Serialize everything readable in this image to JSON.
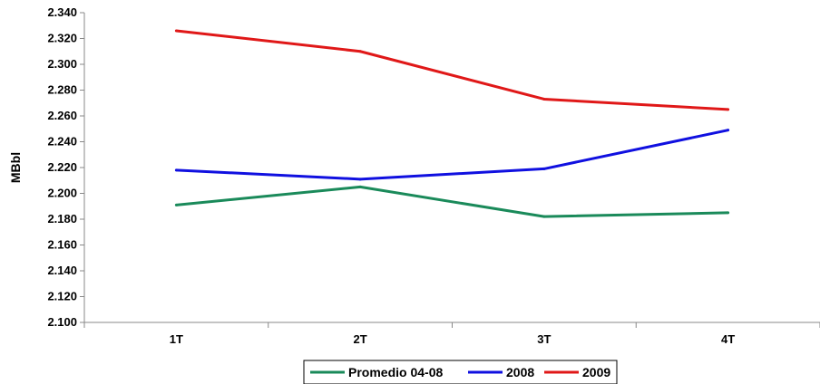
{
  "chart_data": {
    "type": "line",
    "categories": [
      "1T",
      "2T",
      "3T",
      "4T"
    ],
    "ylabel": "MBbl",
    "ylim": [
      2.1,
      2.34
    ],
    "y_ticks": [
      "2.100",
      "2.120",
      "2.140",
      "2.160",
      "2.180",
      "2.200",
      "2.220",
      "2.240",
      "2.260",
      "2.280",
      "2.300",
      "2.320",
      "2.340"
    ],
    "grid": false,
    "legend_position": "bottom",
    "series": [
      {
        "name": "Promedio 04-08",
        "color": "#1a8a5a",
        "values": [
          2.191,
          2.205,
          2.182,
          2.185
        ]
      },
      {
        "name": "2008",
        "color": "#1010e0",
        "values": [
          2.218,
          2.211,
          2.219,
          2.249
        ]
      },
      {
        "name": "2009",
        "color": "#e01818",
        "values": [
          2.326,
          2.31,
          2.273,
          2.265
        ]
      }
    ]
  }
}
